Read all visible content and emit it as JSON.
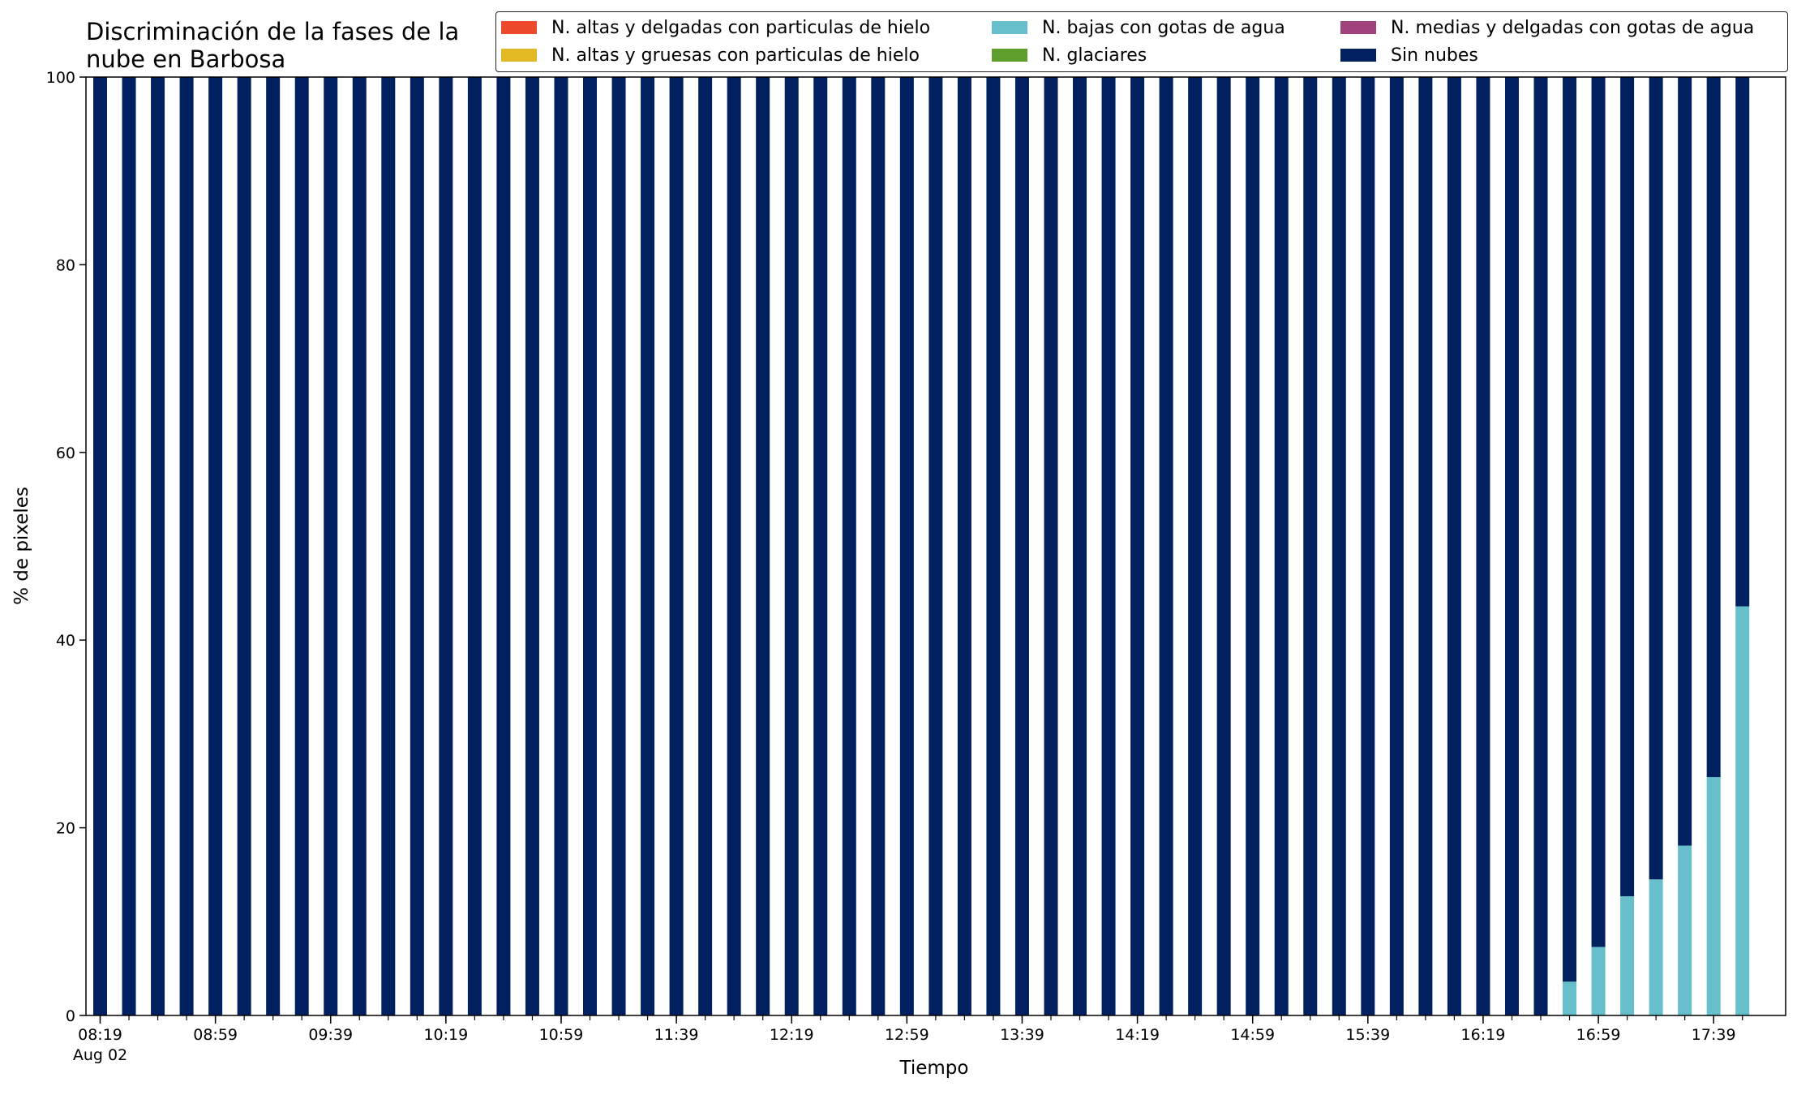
{
  "chart_data": {
    "type": "bar",
    "stacked": true,
    "title": "Discriminación de la fases de la\nnube en Barbosa",
    "xlabel": "Tiempo",
    "ylabel": "% de pixeles",
    "ylim": [
      0,
      100
    ],
    "yticks": [
      "0",
      "20",
      "40",
      "60",
      "80",
      "100"
    ],
    "date_label": "Aug 02",
    "grid": false,
    "legend_position": "top",
    "x_tick_labels": [
      "08:19",
      "08:59",
      "09:39",
      "10:19",
      "10:59",
      "11:39",
      "12:19",
      "12:59",
      "13:39",
      "14:19",
      "14:59",
      "15:39",
      "16:19",
      "16:59",
      "17:39"
    ],
    "x": [
      "08:19",
      "08:29",
      "08:39",
      "08:49",
      "08:59",
      "09:09",
      "09:19",
      "09:29",
      "09:39",
      "09:49",
      "09:59",
      "10:09",
      "10:19",
      "10:29",
      "10:39",
      "10:49",
      "10:59",
      "11:09",
      "11:19",
      "11:29",
      "11:39",
      "11:49",
      "11:59",
      "12:09",
      "12:19",
      "12:29",
      "12:39",
      "12:49",
      "12:59",
      "13:09",
      "13:19",
      "13:29",
      "13:39",
      "13:49",
      "13:59",
      "14:09",
      "14:19",
      "14:29",
      "14:39",
      "14:49",
      "14:59",
      "15:09",
      "15:19",
      "15:29",
      "15:39",
      "15:49",
      "15:59",
      "16:09",
      "16:19",
      "16:29",
      "16:39",
      "16:49",
      "16:59",
      "17:09",
      "17:19",
      "17:29",
      "17:39",
      "17:49"
    ],
    "series": [
      {
        "name": "N. altas y delgadas con particulas de hielo",
        "color": "#ec4a2a",
        "values": [
          0,
          0,
          0,
          0,
          0,
          0,
          0,
          0,
          0,
          0,
          0,
          0,
          0,
          0,
          0,
          0,
          0,
          0,
          0,
          0,
          0,
          0,
          0,
          0,
          0,
          0,
          0,
          0,
          0,
          0,
          0,
          0,
          0,
          0,
          0,
          0,
          0,
          0,
          0,
          0,
          0,
          0,
          0,
          0,
          0,
          0,
          0,
          0,
          0,
          0,
          0,
          0,
          0,
          0,
          0,
          0,
          0,
          0
        ]
      },
      {
        "name": "N. altas y gruesas con particulas de hielo",
        "color": "#e2b923",
        "values": [
          0,
          0,
          0,
          0,
          0,
          0,
          0,
          0,
          0,
          0,
          0,
          0,
          0,
          0,
          0,
          0,
          0,
          0,
          0,
          0,
          0,
          0,
          0,
          0,
          0,
          0,
          0,
          0,
          0,
          0,
          0,
          0,
          0,
          0,
          0,
          0,
          0,
          0,
          0,
          0,
          0,
          0,
          0,
          0,
          0,
          0,
          0,
          0,
          0,
          0,
          0,
          0,
          0,
          0,
          0,
          0,
          0,
          0
        ]
      },
      {
        "name": "N. bajas con gotas de agua",
        "color": "#66bfca",
        "values": [
          0,
          0,
          0,
          0,
          0,
          0,
          0,
          0,
          0,
          0,
          0,
          0,
          0,
          0,
          0,
          0,
          0,
          0,
          0,
          0,
          0,
          0,
          0,
          0,
          0,
          0,
          0,
          0,
          0,
          0,
          0,
          0,
          0,
          0,
          0,
          0,
          0,
          0,
          0,
          0,
          0,
          0,
          0,
          0,
          0,
          0,
          0,
          0,
          0,
          0,
          0,
          3.6,
          7.3,
          12.7,
          14.5,
          18.1,
          25.4,
          43.6
        ]
      },
      {
        "name": "N. glaciares",
        "color": "#5e9e2c",
        "values": [
          0,
          0,
          0,
          0,
          0,
          0,
          0,
          0,
          0,
          0,
          0,
          0,
          0,
          0,
          0,
          0,
          0,
          0,
          0,
          0,
          0,
          0,
          0,
          0,
          0,
          0,
          0,
          0,
          0,
          0,
          0,
          0,
          0,
          0,
          0,
          0,
          0,
          0,
          0,
          0,
          0,
          0,
          0,
          0,
          0,
          0,
          0,
          0,
          0,
          0,
          0,
          0,
          0,
          0,
          0,
          0,
          0,
          0
        ]
      },
      {
        "name": "N. medias y delgadas con gotas de agua",
        "color": "#a0427b",
        "values": [
          0,
          0,
          0,
          0,
          0,
          0,
          0,
          0,
          0,
          0,
          0,
          0,
          0,
          0,
          0,
          0,
          0,
          0,
          0,
          0,
          0,
          0,
          0,
          0,
          0,
          0,
          0,
          0,
          0,
          0,
          0,
          0,
          0,
          0,
          0,
          0,
          0,
          0,
          0,
          0,
          0,
          0,
          0,
          0,
          0,
          0,
          0,
          0,
          0,
          0,
          0,
          0,
          0,
          0,
          0,
          0,
          0,
          0
        ]
      },
      {
        "name": "Sin nubes",
        "color": "#00205f",
        "values": [
          100,
          100,
          100,
          100,
          100,
          100,
          100,
          100,
          100,
          100,
          100,
          100,
          100,
          100,
          100,
          100,
          100,
          100,
          100,
          100,
          100,
          100,
          100,
          100,
          100,
          100,
          100,
          100,
          100,
          100,
          100,
          100,
          100,
          100,
          100,
          100,
          100,
          100,
          100,
          100,
          100,
          100,
          100,
          100,
          100,
          100,
          100,
          100,
          100,
          100,
          100,
          96.4,
          92.7,
          87.3,
          85.5,
          81.9,
          74.6,
          56.4
        ]
      }
    ]
  }
}
